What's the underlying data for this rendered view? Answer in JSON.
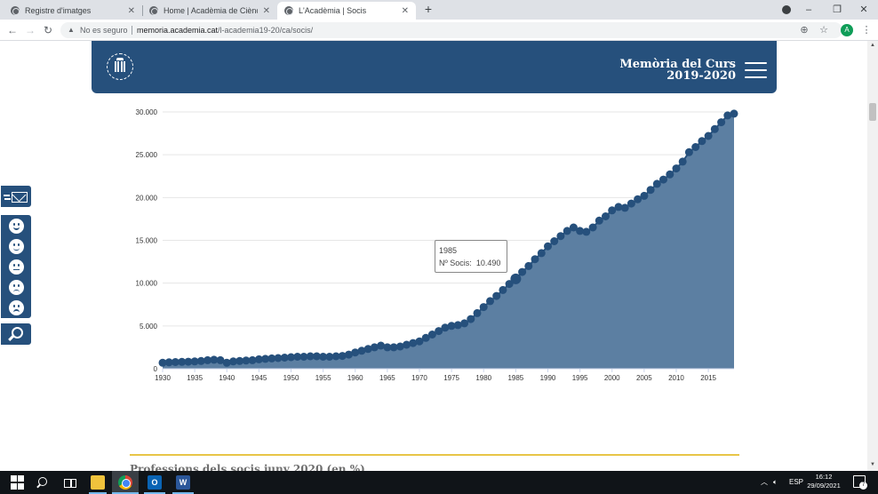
{
  "browser": {
    "tabs": [
      {
        "label": "Registre d'imatges",
        "active": false
      },
      {
        "label": "Home | Acadèmia de Ciències Mè",
        "active": false
      },
      {
        "label": "L'Acadèmia | Socis",
        "active": true
      }
    ],
    "new_tab": "+",
    "window_controls": {
      "minimize": "–",
      "restore": "❐",
      "close": "✕"
    },
    "address": {
      "security_label": "No es seguro",
      "url_host": "memoria.academia.cat",
      "url_path": "/l-academia19-20/ca/socis/"
    },
    "profile_initial": "A"
  },
  "site": {
    "header_title_line1": "Memòria del Curs",
    "header_title_line2": "2019-2020",
    "section_heading": "Professions dels socis juny 2020 (en %)"
  },
  "chart_data": {
    "type": "area",
    "title": "",
    "xlabel": "",
    "ylabel": "",
    "ylim": [
      0,
      30000
    ],
    "xlim": [
      1930,
      2019
    ],
    "grid": true,
    "yticks": [
      {
        "value": 0,
        "label": "0"
      },
      {
        "value": 5000,
        "label": "5.000"
      },
      {
        "value": 10000,
        "label": "10.000"
      },
      {
        "value": 15000,
        "label": "15.000"
      },
      {
        "value": 20000,
        "label": "20.000"
      },
      {
        "value": 25000,
        "label": "25.000"
      },
      {
        "value": 30000,
        "label": "30.000"
      }
    ],
    "xticks": [
      {
        "value": 1930,
        "label": "1930"
      },
      {
        "value": 1935,
        "label": "1935"
      },
      {
        "value": 1940,
        "label": "1940"
      },
      {
        "value": 1945,
        "label": "1945"
      },
      {
        "value": 1950,
        "label": "1950"
      },
      {
        "value": 1955,
        "label": "1955"
      },
      {
        "value": 1960,
        "label": "1960"
      },
      {
        "value": 1965,
        "label": "1965"
      },
      {
        "value": 1970,
        "label": "1970"
      },
      {
        "value": 1975,
        "label": "1975"
      },
      {
        "value": 1980,
        "label": "1980"
      },
      {
        "value": 1985,
        "label": "1985"
      },
      {
        "value": 1990,
        "label": "1990"
      },
      {
        "value": 1995,
        "label": "1995"
      },
      {
        "value": 2000,
        "label": "2000"
      },
      {
        "value": 2005,
        "label": "2005"
      },
      {
        "value": 2010,
        "label": "2010"
      },
      {
        "value": 2015,
        "label": "2015"
      }
    ],
    "series": [
      {
        "name": "Nº Socis",
        "color": "#26507c",
        "fill": "#5c7fa2",
        "x": [
          1930,
          1931,
          1932,
          1933,
          1934,
          1935,
          1936,
          1937,
          1938,
          1939,
          1940,
          1941,
          1942,
          1943,
          1944,
          1945,
          1946,
          1947,
          1948,
          1949,
          1950,
          1951,
          1952,
          1953,
          1954,
          1955,
          1956,
          1957,
          1958,
          1959,
          1960,
          1961,
          1962,
          1963,
          1964,
          1965,
          1966,
          1967,
          1968,
          1969,
          1970,
          1971,
          1972,
          1973,
          1974,
          1975,
          1976,
          1977,
          1978,
          1979,
          1980,
          1981,
          1982,
          1983,
          1984,
          1985,
          1986,
          1987,
          1988,
          1989,
          1990,
          1991,
          1992,
          1993,
          1994,
          1995,
          1996,
          1997,
          1998,
          1999,
          2000,
          2001,
          2002,
          2003,
          2004,
          2005,
          2006,
          2007,
          2008,
          2009,
          2010,
          2011,
          2012,
          2013,
          2014,
          2015,
          2016,
          2017,
          2018,
          2019
        ],
        "y": [
          700,
          750,
          780,
          800,
          820,
          850,
          900,
          1000,
          1050,
          1000,
          700,
          850,
          900,
          950,
          1000,
          1100,
          1150,
          1200,
          1250,
          1300,
          1350,
          1400,
          1400,
          1450,
          1450,
          1400,
          1400,
          1450,
          1500,
          1650,
          1900,
          2100,
          2300,
          2500,
          2700,
          2500,
          2500,
          2600,
          2800,
          3000,
          3200,
          3600,
          4000,
          4400,
          4800,
          5000,
          5100,
          5300,
          5800,
          6500,
          7200,
          7900,
          8500,
          9200,
          9900,
          10490,
          11300,
          12000,
          12800,
          13500,
          14300,
          14900,
          15500,
          16100,
          16500,
          16100,
          16000,
          16500,
          17300,
          17800,
          18500,
          18900,
          18800,
          19300,
          19800,
          20200,
          20900,
          21600,
          22100,
          22700,
          23400,
          24200,
          25300,
          25900,
          26600,
          27200,
          28000,
          28800,
          29600,
          29800
        ]
      }
    ],
    "tooltip": {
      "year": "1985",
      "label": "Nº Socis:",
      "value": "10.490"
    }
  },
  "floating_tools": {
    "mail": "envelope-icon",
    "faces": [
      "very-happy-face-icon",
      "happy-face-icon",
      "neutral-face-icon",
      "unhappy-face-icon",
      "sad-face-icon"
    ],
    "search": "search-icon"
  },
  "taskbar": {
    "lang": "ESP",
    "time": "16:12",
    "date": "29/09/2021",
    "notifications": "7"
  }
}
